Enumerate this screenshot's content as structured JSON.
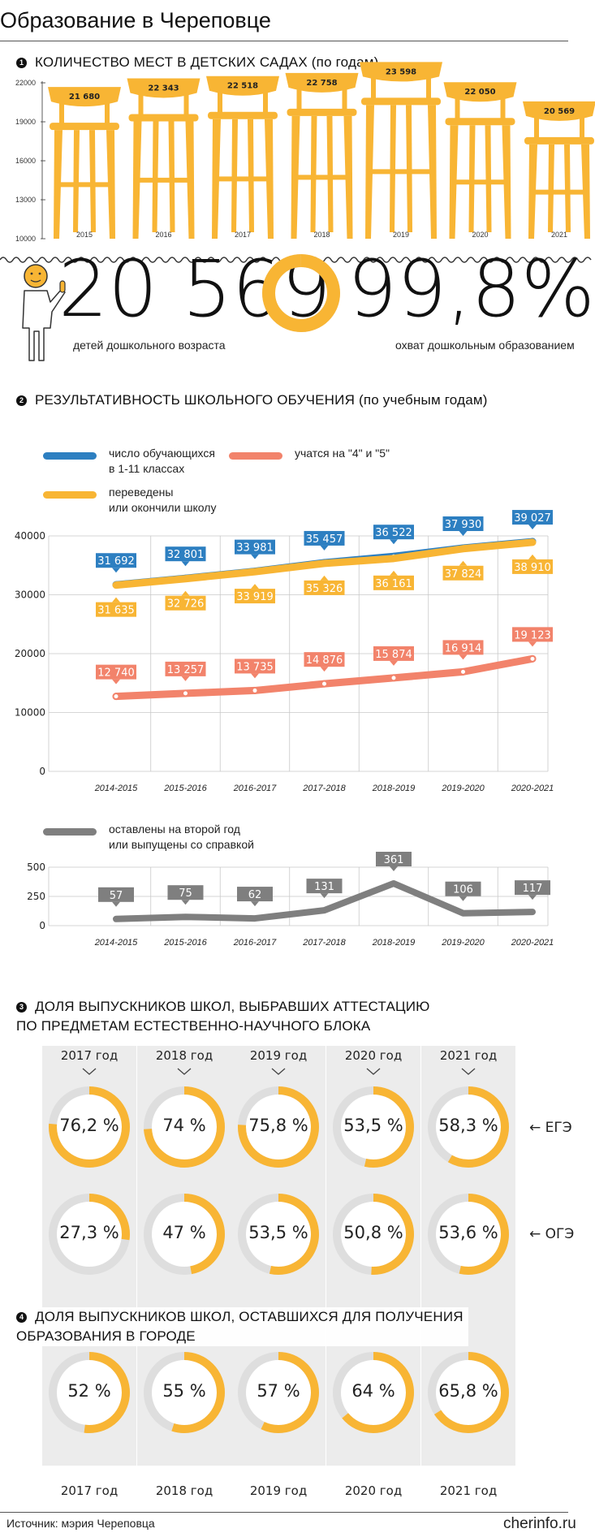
{
  "title": "Образование в Череповце",
  "colors": {
    "yellow": "#f8b534",
    "blue": "#2d7fc1",
    "salmon": "#f2836b",
    "gray": "#7f7f7f",
    "track": "#dedede",
    "panel": "#ececec"
  },
  "section1": {
    "number": "1",
    "heading": "КОЛИЧЕСТВО МЕСТ В ДЕТСКИХ САДАХ (по годам)",
    "icon": "chair-icon"
  },
  "section2": {
    "number": "2",
    "heading": "РЕЗУЛЬТАТИВНОСТЬ ШКОЛЬНОГО ОБУЧЕНИЯ (по учебным годам)",
    "legend": {
      "students": [
        "число обучающихся",
        "в 1-11 классах"
      ],
      "good": "учатся на \"4\" и \"5\"",
      "promoted": [
        "переведены",
        "или окончили школу"
      ],
      "held": [
        "оставлены на второй год",
        "или выпущены со справкой"
      ]
    }
  },
  "section3": {
    "number": "3",
    "heading": [
      "ДОЛЯ ВЫПУСКНИКОВ ШКОЛ, ВЫБРАВШИХ АТТЕСТАЦИЮ",
      "ПО ПРЕДМЕТАМ ЕСТЕСТВЕННО-НАУЧНОГО БЛОКА"
    ],
    "row_labels": [
      "← ЕГЭ",
      "← ОГЭ"
    ]
  },
  "section4": {
    "number": "4",
    "heading": [
      "ДОЛЯ ВЫПУСКНИКОВ ШКОЛ, ОСТАВШИХСЯ ДЛЯ ПОЛУЧЕНИЯ",
      "ОБРАЗОВАНИЯ В ГОРОДЕ"
    ]
  },
  "highlight": {
    "children_value": "20 569",
    "children_caption": "детей дошкольного возраста",
    "coverage_value": "99,8%",
    "coverage_fraction": 0.998,
    "coverage_caption": "охват дошкольным образованием",
    "icon": "child-icon"
  },
  "footer": {
    "source": "Источник: мэрия Череповца",
    "site": "cherinfo.ru"
  },
  "chart_data": [
    {
      "id": "kindergarten-places",
      "type": "bar",
      "categories": [
        "2015",
        "2016",
        "2017",
        "2018",
        "2019",
        "2020",
        "2021"
      ],
      "values": [
        21680,
        22343,
        22518,
        22758,
        23598,
        22050,
        20569
      ],
      "value_labels": [
        "21 680",
        "22 343",
        "22 518",
        "22 758",
        "23 598",
        "22 050",
        "20 569"
      ],
      "y_ticks": [
        "22000",
        "19000",
        "16000",
        "13000",
        "10000"
      ],
      "ylim": [
        10000,
        22000
      ]
    },
    {
      "id": "school-results",
      "type": "line",
      "categories": [
        "2014-2015",
        "2015-2016",
        "2016-2017",
        "2017-2018",
        "2018-2019",
        "2019-2020",
        "2020-2021"
      ],
      "y_ticks": [
        "40000",
        "30000",
        "20000",
        "10000",
        "0"
      ],
      "ylim": [
        0,
        40000
      ],
      "series": [
        {
          "name": "число обучающихся в 1-11 классах",
          "values": [
            31692,
            32801,
            33981,
            35457,
            36522,
            37930,
            39027
          ],
          "labels": [
            "31 692",
            "32 801",
            "33 981",
            "35 457",
            "36 522",
            "37 930",
            "39 027"
          ]
        },
        {
          "name": "переведены или окончили школу",
          "values": [
            31635,
            32726,
            33919,
            35326,
            36161,
            37824,
            38910
          ],
          "labels": [
            "31 635",
            "32 726",
            "33 919",
            "35 326",
            "36 161",
            "37 824",
            "38 910"
          ]
        },
        {
          "name": "учатся на \"4\" и \"5\"",
          "values": [
            12740,
            13257,
            13735,
            14876,
            15874,
            16914,
            19123
          ],
          "labels": [
            "12 740",
            "13 257",
            "13 735",
            "14 876",
            "15 874",
            "16 914",
            "19 123"
          ]
        }
      ]
    },
    {
      "id": "held-back",
      "type": "line",
      "categories": [
        "2014-2015",
        "2015-2016",
        "2016-2017",
        "2017-2018",
        "2018-2019",
        "2019-2020",
        "2020-2021"
      ],
      "y_ticks": [
        "500",
        "250",
        "0"
      ],
      "ylim": [
        0,
        500
      ],
      "series": [
        {
          "name": "оставлены на второй год или выпущены со справкой",
          "values": [
            57,
            75,
            62,
            131,
            361,
            106,
            117
          ],
          "labels": [
            "57",
            "75",
            "62",
            "131",
            "361",
            "106",
            "117"
          ]
        }
      ]
    },
    {
      "id": "science-attestation",
      "type": "pie",
      "years": [
        "2017 год",
        "2018 год",
        "2019 год",
        "2020 год",
        "2021 год"
      ],
      "ege": {
        "values": [
          76.2,
          74,
          75.8,
          53.5,
          58.3
        ],
        "labels": [
          "76,2 %",
          "74 %",
          "75,8 %",
          "53,5 %",
          "58,3 %"
        ]
      },
      "oge": {
        "values": [
          27.3,
          47,
          53.5,
          50.8,
          53.6
        ],
        "labels": [
          "27,3 %",
          "47 %",
          "53,5 %",
          "50,8 %",
          "53,6 %"
        ]
      }
    },
    {
      "id": "stayed-in-city",
      "type": "pie",
      "years": [
        "2017 год",
        "2018 год",
        "2019 год",
        "2020 год",
        "2021 год"
      ],
      "values": [
        52,
        55,
        57,
        64,
        65.8
      ],
      "labels": [
        "52 %",
        "55 %",
        "57 %",
        "64 %",
        "65,8 %"
      ]
    }
  ]
}
